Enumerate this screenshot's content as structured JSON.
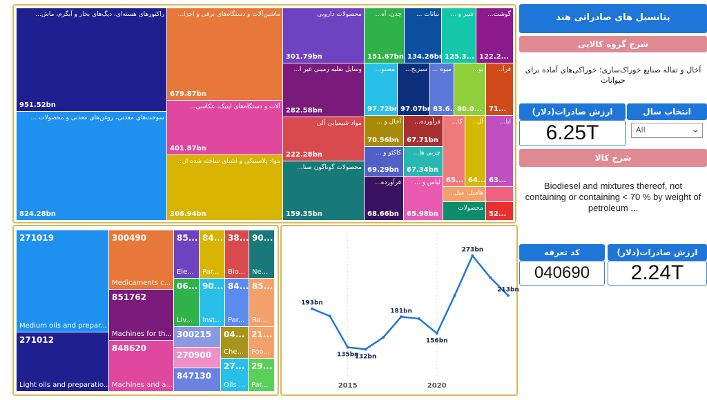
{
  "colors": {
    "accent": "#1e76d8",
    "panel_border": "#d9b75a",
    "pink_header": "#e08a93"
  },
  "treemap_top": [
    {
      "label": "راکتورهای هسته‌ای، دیگ‌های بخار و آبگرم، ماش...",
      "value": "951.52bn",
      "color": "#1f1f8f"
    },
    {
      "label": "سوخت‌های معدنی، روغن‌های معدنی و محصولات ...",
      "value": "824.28bn",
      "color": "#1e90f0"
    },
    {
      "label": "ماشین‌آلات و دستگاه‌های برقی و اجزا...",
      "value": "679.87bn",
      "color": "#e8783a"
    },
    {
      "label": "آلات و دستگاه‌های اپتیک، عکاسی...",
      "value": "401.87bn",
      "color": "#e0479e"
    },
    {
      "label": "مواد پلاستیکی و اشیای ساخته شده از...",
      "value": "306.94bn",
      "color": "#d8b400"
    },
    {
      "label": "محصولات دارویی",
      "value": "301.79bn",
      "color": "#6f42c1"
    },
    {
      "label": "وسایل نقلیه زمینی غیر ا...",
      "value": "282.58bn",
      "color": "#7a1a7a"
    },
    {
      "label": "مواد شیمیایی آلی",
      "value": "222.28bn",
      "color": "#d84a4e"
    },
    {
      "label": "محصولات گوناگون صنا...",
      "value": "159.35bn",
      "color": "#177a78"
    },
    {
      "label": "چدن، آه...",
      "value": "151.67bn",
      "color": "#2fb24a"
    },
    {
      "label": "نباتات ...",
      "value": "134.26bn",
      "color": "#0b4f9e"
    },
    {
      "label": "شیر و ...",
      "value": "125.3...",
      "color": "#14c7a8"
    },
    {
      "label": "گوشت...",
      "value": "122.2...",
      "color": "#8c1a8c"
    },
    {
      "label": "مصنو...",
      "value": "97.72bn",
      "color": "#28c0e8"
    },
    {
      "label": "سبزیج...",
      "value": "97.07bn",
      "color": "#0d2e7a"
    },
    {
      "label": "میوه ...",
      "value": "83.6...",
      "color": "#5a78d8"
    },
    {
      "label": "نو...",
      "value": "80.0...",
      "color": "#8fcf3a"
    },
    {
      "label": "فرآ...",
      "value": "71...",
      "color": "#d04a1a"
    },
    {
      "label": "آخال و ...",
      "value": "70.56bn",
      "color": "#a88a08"
    },
    {
      "label": "فرآورده...",
      "value": "67.71bn",
      "color": "#a83030"
    },
    {
      "label": "کا...",
      "value": "65...",
      "color": "#f07a7a"
    },
    {
      "label": "آل...",
      "value": "64...",
      "color": "#d4b800"
    },
    {
      "label": "ابا...",
      "value": "63...",
      "color": "#c04fc0"
    },
    {
      "label": "کاکئو و ...",
      "value": "69.29bn",
      "color": "#5060c8"
    },
    {
      "label": "چربی ها...",
      "value": "67.34bn",
      "color": "#28b8b0"
    },
    {
      "label": "فرآورده...",
      "value": "68.66bn",
      "color": "#3a1060"
    },
    {
      "label": "لباس و ...",
      "value": "65.98bn",
      "color": "#e85ab0"
    },
    {
      "label": "هامیل، میل...",
      "value": "",
      "color": "#f4a06a"
    },
    {
      "label": "",
      "value": "",
      "color": "#f06080"
    },
    {
      "label": "محصولات",
      "value": "",
      "color": "#0e8c6e"
    },
    {
      "label": "",
      "value": "52...",
      "color": "#e83030"
    }
  ],
  "treemap_codes": [
    {
      "code": "271019",
      "desc": "Medium oils and prepar...",
      "color": "#1e90f0"
    },
    {
      "code": "271012",
      "desc": "Light oils and preparatio...",
      "color": "#1f1f8f"
    },
    {
      "code": "300490",
      "desc": "Medicaments c...",
      "color": "#e8783a"
    },
    {
      "code": "851762",
      "desc": "Machines for th...",
      "color": "#7a1a7a"
    },
    {
      "code": "848620",
      "desc": "Machines and a...",
      "color": "#e0479e"
    },
    {
      "code": "85...",
      "desc": "Ele...",
      "color": "#6f42c1"
    },
    {
      "code": "84...",
      "desc": "Par...",
      "color": "#d8b400"
    },
    {
      "code": "38...",
      "desc": "Bio...",
      "color": "#d84a4e"
    },
    {
      "code": "90...",
      "desc": "Ne...",
      "color": "#177a78"
    },
    {
      "code": "06...",
      "desc": "Liv...",
      "color": "#2fb24a"
    },
    {
      "code": "90...",
      "desc": "Inst...",
      "color": "#28c0e8"
    },
    {
      "code": "84...",
      "desc": "Par...",
      "color": "#5a8cf0"
    },
    {
      "code": "85...",
      "desc": "Ro...",
      "color": "#f4a06a"
    },
    {
      "code": "300215",
      "desc": "",
      "color": "#8a9ae0"
    },
    {
      "code": "270900",
      "desc": "",
      "color": "#f090c8"
    },
    {
      "code": "847130",
      "desc": "",
      "color": "#6a82e0"
    },
    {
      "code": "04...",
      "desc": "Che...",
      "color": "#a8941a"
    },
    {
      "code": "21...",
      "desc": "Foo...",
      "color": "#f4a06a"
    },
    {
      "code": "27...",
      "desc": "Oils ...",
      "color": "#28c0e8"
    },
    {
      "code": "29...",
      "desc": "Par...",
      "color": "#5ad05a"
    }
  ],
  "chart_data": {
    "type": "line",
    "x": [
      2013,
      2014,
      2015,
      2016,
      2017,
      2018,
      2019,
      2020,
      2021,
      2022,
      2023,
      2024
    ],
    "series": [
      {
        "values": [
          193,
          182,
          135,
          132,
          150,
          181,
          178,
          156,
          213,
          273,
          240,
          213
        ],
        "labels": [
          "193bn",
          "",
          "135bn",
          "132bn",
          "",
          "181bn",
          "",
          "156bn",
          "",
          "273bn",
          "",
          "213bn"
        ]
      }
    ],
    "xticks": [
      "2015",
      "2020"
    ],
    "color": "#1e76d8"
  },
  "sidebar": {
    "title": "پتانسیل های صادراتی هند",
    "group_header": "شرح گروه کالایی",
    "group_text": "آخال و تفاله صنایع خوراک‌سازی؛ خوراکی‌های آماده برای حیوانات",
    "export_value_header": "ارزش صادرات(دلار)",
    "export_value": "6.25T",
    "year_header": "انتخاب سال",
    "year_value": "All",
    "goods_header": "شرح کالا",
    "goods_text": "Biodiesel and mixtures thereof, not containing or containing < 70 % by weight of petroleum ...",
    "tariff_header": "کد تعرفه",
    "tariff_value": "040690",
    "export_value2_header": "ارزش صادرات(دلار)",
    "export_value2": "2.24T"
  }
}
